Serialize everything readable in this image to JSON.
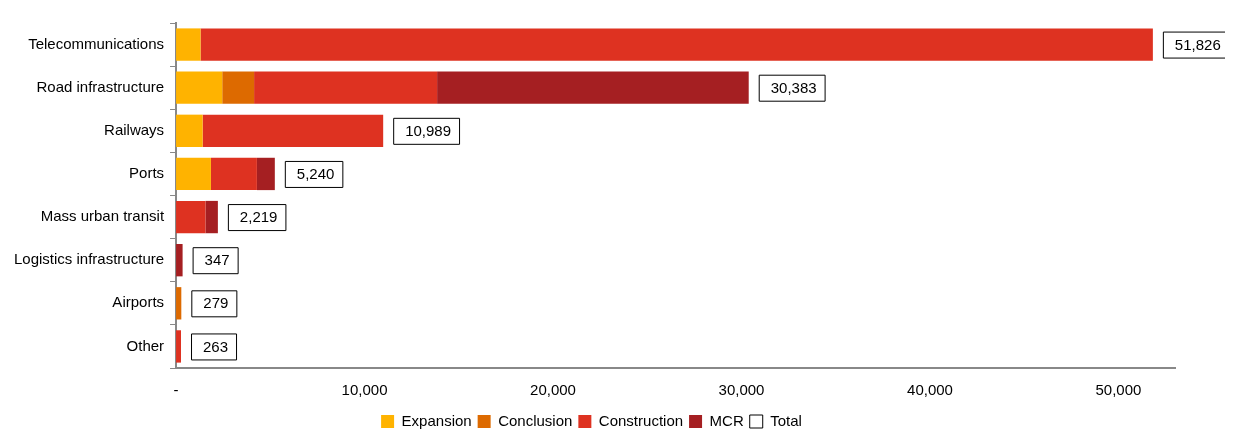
{
  "chart_data": {
    "type": "bar",
    "orientation": "horizontal",
    "stacked": true,
    "categories": [
      "Telecommunications",
      "Road infrastructure",
      "Railways",
      "Ports",
      "Mass urban transit",
      "Logistics infrastructure",
      "Airports",
      "Other"
    ],
    "series": [
      {
        "name": "Expansion",
        "color": "#ffb300",
        "values": [
          1300,
          2450,
          1410,
          1850,
          null,
          null,
          null,
          null
        ]
      },
      {
        "name": "Conclusion",
        "color": "#dd6a00",
        "values": [
          null,
          1690,
          null,
          null,
          null,
          null,
          279,
          null
        ]
      },
      {
        "name": "Construction",
        "color": "#de3221",
        "values": [
          50526,
          9710,
          9579,
          2440,
          1560,
          null,
          null,
          263
        ]
      },
      {
        "name": "MCR",
        "color": "#a51f22",
        "values": [
          null,
          16533,
          null,
          950,
          659,
          347,
          null,
          null
        ]
      },
      {
        "name": "Total",
        "color": "#ffffff",
        "values": [
          null,
          null,
          null,
          null,
          null,
          null,
          null,
          null
        ]
      }
    ],
    "totals": [
      "51,826",
      "30,383",
      "10,989",
      "5,240",
      "2,219",
      "347",
      "279",
      "263"
    ],
    "xlim": [
      0,
      53000
    ],
    "xticks": [
      {
        "value": 0,
        "label": "-"
      },
      {
        "value": 10000,
        "label": "10,000"
      },
      {
        "value": 20000,
        "label": "20,000"
      },
      {
        "value": 30000,
        "label": "30,000"
      },
      {
        "value": 40000,
        "label": "40,000"
      },
      {
        "value": 50000,
        "label": "50,000"
      }
    ],
    "grid": false,
    "legend": "bottom"
  }
}
